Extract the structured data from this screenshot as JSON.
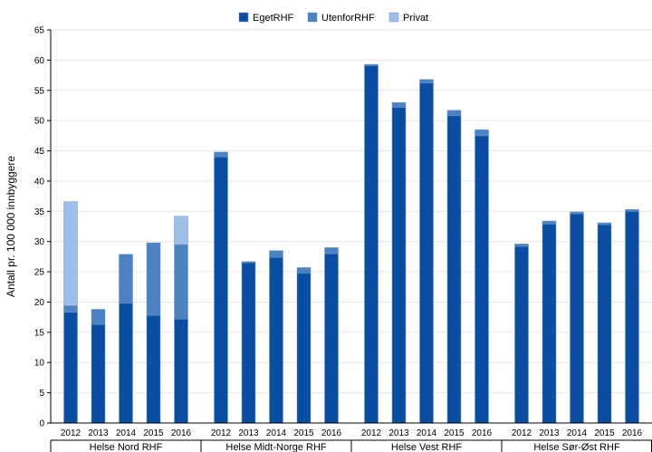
{
  "chart_data": {
    "type": "bar",
    "stacked": true,
    "ylabel": "Antall pr. 100 000 innbyggere",
    "ylim": [
      0,
      65
    ],
    "yticks": [
      0,
      5,
      10,
      15,
      20,
      25,
      30,
      35,
      40,
      45,
      50,
      55,
      60,
      65
    ],
    "legend_position": "top-center",
    "grid": true,
    "groups": [
      {
        "name": "Helse Nord RHF",
        "categories": [
          "2012",
          "2013",
          "2014",
          "2015",
          "2016"
        ]
      },
      {
        "name": "Helse Midt-Norge RHF",
        "categories": [
          "2012",
          "2013",
          "2014",
          "2015",
          "2016"
        ]
      },
      {
        "name": "Helse Vest RHF",
        "categories": [
          "2012",
          "2013",
          "2014",
          "2015",
          "2016"
        ]
      },
      {
        "name": "Helse Sør-Øst RHF",
        "categories": [
          "2012",
          "2013",
          "2014",
          "2015",
          "2016"
        ]
      }
    ],
    "series": [
      {
        "name": "EgetRHF",
        "color": "#0a4ea1",
        "values": [
          18.3,
          16.3,
          19.8,
          17.8,
          17.2,
          44.0,
          26.5,
          27.4,
          24.8,
          28.0,
          59.1,
          52.2,
          56.2,
          50.8,
          47.5,
          29.2,
          32.9,
          34.6,
          32.8,
          35.0
        ]
      },
      {
        "name": "UtenforRHF",
        "color": "#4d82c2",
        "values": [
          1.1,
          2.5,
          8.1,
          12.0,
          12.3,
          0.8,
          0.2,
          1.1,
          0.9,
          1.0,
          0.2,
          0.8,
          0.6,
          0.9,
          1.0,
          0.4,
          0.5,
          0.3,
          0.3,
          0.3
        ]
      },
      {
        "name": "Privat",
        "color": "#9ec0e8",
        "values": [
          17.2,
          0.0,
          0.0,
          0.0,
          4.7,
          0.0,
          0.0,
          0.0,
          0.0,
          0.0,
          0.0,
          0.0,
          0.0,
          0.0,
          0.0,
          0.0,
          0.0,
          0.0,
          0.0,
          0.0
        ]
      }
    ]
  }
}
